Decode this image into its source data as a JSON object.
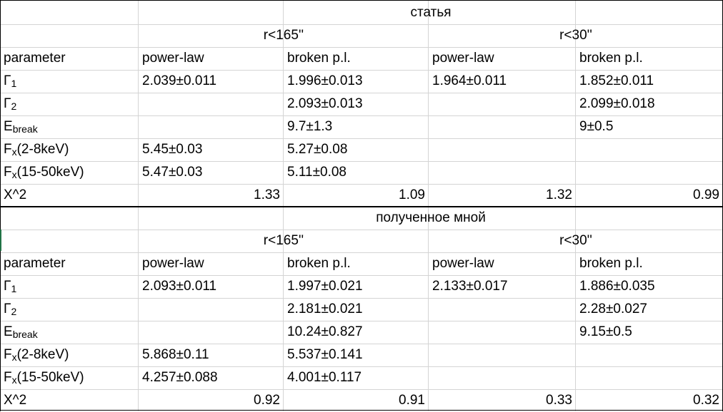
{
  "sections": [
    {
      "title": "статья",
      "groups": [
        "r<165''",
        "r<30''"
      ],
      "header": [
        "parameter",
        "power-law",
        "broken p.l.",
        "power-law",
        "broken p.l."
      ],
      "rows": [
        {
          "p1": "Γ",
          "sub": "1",
          "p2": "",
          "v": [
            "2.039±0.011",
            "1.996±0.013",
            "1.964±0.011",
            "1.852±0.011"
          ]
        },
        {
          "p1": "Γ",
          "sub": "2",
          "p2": "",
          "v": [
            "",
            "2.093±0.013",
            "",
            "2.099±0.018"
          ]
        },
        {
          "p1": "E",
          "sub": "break",
          "p2": "",
          "v": [
            "",
            "9.7±1.3",
            "",
            "9±0.5"
          ]
        },
        {
          "p1": "F",
          "sub": "x",
          "p2": "(2-8keV)",
          "v": [
            "5.45±0.03",
            "5.27±0.08",
            "",
            ""
          ]
        },
        {
          "p1": "F",
          "sub": "x",
          "p2": "(15-50keV)",
          "v": [
            "5.47±0.03",
            "5.11±0.08",
            "",
            ""
          ]
        }
      ],
      "chi": {
        "label": "X^2",
        "v": [
          "1.33",
          "1.09",
          "1.32",
          "0.99"
        ]
      }
    },
    {
      "title": "полученное мной",
      "groups": [
        "r<165''",
        "r<30''"
      ],
      "header": [
        "parameter",
        "power-law",
        "broken p.l.",
        "power-law",
        "broken p.l."
      ],
      "rows": [
        {
          "p1": "Γ",
          "sub": "1",
          "p2": "",
          "v": [
            "2.093±0.011",
            "1.997±0.021",
            "2.133±0.017",
            "1.886±0.035"
          ]
        },
        {
          "p1": "Γ",
          "sub": "2",
          "p2": "",
          "v": [
            "",
            "2.181±0.021",
            "",
            "2.28±0.027"
          ]
        },
        {
          "p1": "E",
          "sub": "break",
          "p2": "",
          "v": [
            "",
            "10.24±0.827",
            "",
            "9.15±0.5"
          ]
        },
        {
          "p1": "F",
          "sub": "x",
          "p2": "(2-8keV)",
          "v": [
            "5.868±0.11",
            "5.537±0.141",
            "",
            ""
          ]
        },
        {
          "p1": "F",
          "sub": "x",
          "p2": "(15-50keV)",
          "v": [
            "4.257±0.088",
            "4.001±0.117",
            "",
            ""
          ]
        }
      ],
      "chi": {
        "label": "X^2",
        "v": [
          "0.92",
          "0.91",
          "0.33",
          "0.32"
        ]
      }
    }
  ]
}
